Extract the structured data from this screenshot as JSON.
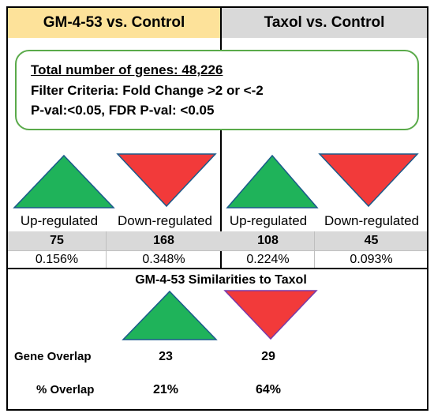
{
  "headers": {
    "left": "GM-4-53 vs. Control",
    "right": "Taxol vs. Control",
    "left_bg": "#fde29a",
    "right_bg": "#d9d9d9"
  },
  "criteria": {
    "total_genes": "Total number of genes: 48,226",
    "filter": "Filter Criteria: Fold Change >2 or <-2",
    "pval": "P-val:<0.05, FDR P-val: <0.05",
    "border_color": "#5aaa4a"
  },
  "colors": {
    "up": "#1fb35a",
    "down": "#f23a3a",
    "count_row_bg": "#d9d9d9"
  },
  "groups": [
    {
      "up": {
        "label": "Up-regulated",
        "count": "75",
        "percent": "0.156%"
      },
      "down": {
        "label": "Down-regulated",
        "count": "168",
        "percent": "0.348%"
      }
    },
    {
      "up": {
        "label": "Up-regulated",
        "count": "108",
        "percent": "0.224%"
      },
      "down": {
        "label": "Down-regulated",
        "count": "45",
        "percent": "0.093%"
      }
    }
  ],
  "similarity": {
    "title": "GM-4-53 Similarities to Taxol",
    "overlap_label": "Gene Overlap",
    "overlap_up": "23",
    "overlap_down": "29",
    "pct_label": "% Overlap",
    "pct_up": "21%",
    "pct_down": "64%"
  }
}
